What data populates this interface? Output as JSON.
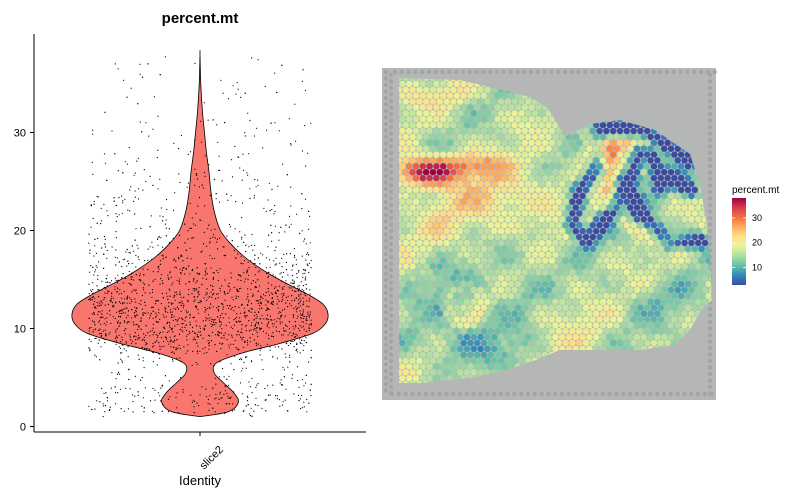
{
  "chart_data": [
    {
      "type": "violin",
      "title": "percent.mt",
      "xlabel": "Identity",
      "ylabel": "",
      "categories": [
        "slice2"
      ],
      "ylim": [
        -0.5,
        40
      ],
      "yticks": [
        0,
        10,
        20,
        30
      ],
      "violin_color": "#F8766D",
      "point_color": "#000000",
      "point_count": 2400,
      "y_max_point": 38,
      "y_min_point": 1,
      "density_profile": [
        {
          "y": 1.0,
          "w": 0.0
        },
        {
          "y": 1.5,
          "w": 0.22
        },
        {
          "y": 2.5,
          "w": 0.3
        },
        {
          "y": 3.5,
          "w": 0.26
        },
        {
          "y": 4.5,
          "w": 0.18
        },
        {
          "y": 5.5,
          "w": 0.11
        },
        {
          "y": 6.5,
          "w": 0.13
        },
        {
          "y": 7.5,
          "w": 0.33
        },
        {
          "y": 8.5,
          "w": 0.63
        },
        {
          "y": 9.5,
          "w": 0.88
        },
        {
          "y": 10.5,
          "w": 0.98
        },
        {
          "y": 11.5,
          "w": 1.0
        },
        {
          "y": 12.5,
          "w": 0.96
        },
        {
          "y": 13.5,
          "w": 0.84
        },
        {
          "y": 14.5,
          "w": 0.69
        },
        {
          "y": 15.5,
          "w": 0.55
        },
        {
          "y": 16.5,
          "w": 0.43
        },
        {
          "y": 17.5,
          "w": 0.33
        },
        {
          "y": 18.5,
          "w": 0.25
        },
        {
          "y": 20.0,
          "w": 0.16
        },
        {
          "y": 22.0,
          "w": 0.11
        },
        {
          "y": 24.0,
          "w": 0.085
        },
        {
          "y": 26.0,
          "w": 0.07
        },
        {
          "y": 28.0,
          "w": 0.05
        },
        {
          "y": 30.0,
          "w": 0.035
        },
        {
          "y": 32.0,
          "w": 0.02
        },
        {
          "y": 35.0,
          "w": 0.006
        },
        {
          "y": 38.0,
          "w": 0.0
        }
      ]
    },
    {
      "type": "heatmap",
      "title": "",
      "legend_title": "percent.mt",
      "legend_ticks": [
        10,
        20,
        30
      ],
      "color_range": [
        3,
        38
      ],
      "palette": [
        "#3B4CA0",
        "#3288BD",
        "#66C2A5",
        "#ABDDA4",
        "#E6F598",
        "#FEE08B",
        "#FDAE61",
        "#F46D43",
        "#D53E4F",
        "#9E0142"
      ],
      "background_color": "#B5B7B6",
      "legend_position": "right"
    }
  ]
}
